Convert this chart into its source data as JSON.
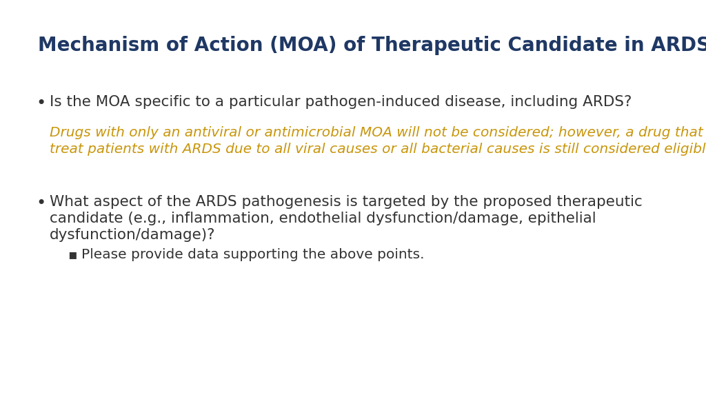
{
  "title": "Mechanism of Action (MOA) of Therapeutic Candidate in ARDS",
  "title_color": "#1F3864",
  "title_fontsize": 20,
  "background_color": "#FFFFFF",
  "bullet1_text": "Is the MOA specific to a particular pathogen-induced disease, including ARDS?",
  "bullet1_color": "#333333",
  "bullet1_fontsize": 15.5,
  "italic_line1": "Drugs with only an antiviral or antimicrobial MOA will not be considered; however, a drug that can",
  "italic_line2": "treat patients with ARDS due to all viral causes or all bacterial causes is still considered eligible.",
  "italic_color": "#C8960C",
  "italic_fontsize": 14.5,
  "bullet2_line1": "What aspect of the ARDS pathogenesis is targeted by the proposed therapeutic",
  "bullet2_line2": "candidate (e.g., inflammation, endothelial dysfunction/damage, epithelial",
  "bullet2_line3": "dysfunction/damage)?",
  "bullet2_color": "#333333",
  "bullet2_fontsize": 15.5,
  "sub_bullet_text": "Please provide data supporting the above points.",
  "sub_bullet_color": "#333333",
  "sub_bullet_fontsize": 14.5,
  "fig_width": 10.24,
  "fig_height": 5.76,
  "dpi": 100
}
